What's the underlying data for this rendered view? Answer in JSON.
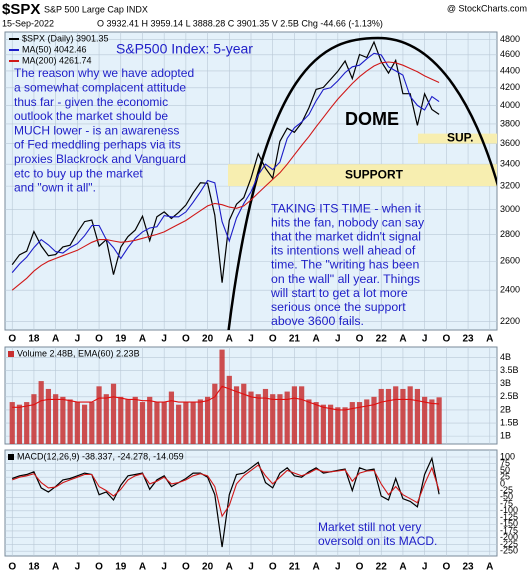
{
  "header": {
    "symbol": "$SPX",
    "name": "S&P 500 Large Cap INDX",
    "source": "@ StockCharts.com",
    "date": "15-Sep-2022",
    "quote": "O 3932.41 H 3959.14 L 3888.28 C 3901.35 V 2.5B Chg -44.66 (-1.13%)"
  },
  "chart_data": [
    {
      "type": "line",
      "log_scale": true,
      "grid": true,
      "subtitle": "S&P500 Index: 5-year",
      "note_left": [
        "The reason why we have adopted",
        "a somewhat complacent attitude",
        "thus far - given the economic",
        "outlook the market should be",
        "MUCH lower - is an awareness",
        "of Fed meddling perhaps via its",
        "proxies Blackrock and Vanguard",
        "etc to buy up the market",
        "and \"own it all\"."
      ],
      "note_right": [
        "TAKING ITS TIME - when it",
        "hits the fan, nobody can say",
        "that the market didn't signal",
        "its intentions well ahead of",
        "time. The \"writing has been",
        "on the wall\" all year. Things",
        "will start to get a lot more",
        "serious once the support",
        "above 3600 fails."
      ],
      "dome_label": "DOME",
      "bands": [
        {
          "from": 3200,
          "to": 3400,
          "label": "SUPPORT",
          "color": "#f7eeb0"
        },
        {
          "from": 3600,
          "to": 3700,
          "label": "SUP.",
          "color": "#f7eeb0"
        }
      ],
      "x": [
        0,
        1,
        2,
        3,
        4,
        5,
        6,
        7,
        8,
        9,
        10,
        11,
        12,
        13,
        14,
        15,
        16,
        17,
        18,
        19,
        20,
        21,
        22,
        23,
        24,
        25,
        26,
        27,
        28,
        29,
        30,
        31,
        32,
        33,
        34,
        35,
        36,
        37,
        38,
        39,
        40,
        41,
        42,
        43,
        44,
        45,
        46,
        47,
        48,
        49,
        50,
        51,
        52,
        53,
        54,
        55,
        56,
        57,
        58,
        59
      ],
      "xlim": [
        -1,
        67
      ],
      "xticks": [
        {
          "value": 0,
          "label": "O"
        },
        {
          "value": 3,
          "label": "18"
        },
        {
          "value": 6,
          "label": "A"
        },
        {
          "value": 9,
          "label": "J"
        },
        {
          "value": 12,
          "label": "O"
        },
        {
          "value": 15,
          "label": "19"
        },
        {
          "value": 18,
          "label": "A"
        },
        {
          "value": 21,
          "label": "J"
        },
        {
          "value": 24,
          "label": "O"
        },
        {
          "value": 27,
          "label": "20"
        },
        {
          "value": 30,
          "label": "A"
        },
        {
          "value": 33,
          "label": "J"
        },
        {
          "value": 36,
          "label": "O"
        },
        {
          "value": 39,
          "label": "21"
        },
        {
          "value": 42,
          "label": "A"
        },
        {
          "value": 45,
          "label": "J"
        },
        {
          "value": 48,
          "label": "O"
        },
        {
          "value": 51,
          "label": "22"
        },
        {
          "value": 54,
          "label": "A"
        },
        {
          "value": 57,
          "label": "J"
        },
        {
          "value": 60,
          "label": "O"
        },
        {
          "value": 63,
          "label": "23"
        },
        {
          "value": 66,
          "label": "A"
        }
      ],
      "ylim": [
        2150,
        4900
      ],
      "yticks": [
        2200,
        2400,
        2600,
        2800,
        3000,
        3200,
        3400,
        3600,
        3800,
        4000,
        4200,
        4400,
        4600,
        4800
      ],
      "series": [
        {
          "name": "$SPX (Daily) 3901.35",
          "color": "#000000",
          "values": [
            2575,
            2647,
            2673,
            2823,
            2713,
            2640,
            2648,
            2705,
            2718,
            2816,
            2901,
            2913,
            2711,
            2760,
            2506,
            2704,
            2784,
            2834,
            2945,
            2752,
            2941,
            2980,
            2926,
            2976,
            3037,
            3141,
            3230,
            3225,
            2954,
            2450,
            2912,
            3044,
            3100,
            3271,
            3500,
            3363,
            3270,
            3622,
            3756,
            3714,
            3811,
            3973,
            4181,
            4204,
            4298,
            4395,
            4523,
            4308,
            4605,
            4567,
            4766,
            4516,
            4374,
            4530,
            4132,
            4132,
            3785,
            4130,
            3955,
            3901.35
          ]
        },
        {
          "name": "MA(50) 4042.46",
          "color": "#1c1cc8",
          "values": [
            2520,
            2580,
            2630,
            2700,
            2760,
            2720,
            2670,
            2660,
            2700,
            2730,
            2790,
            2870,
            2870,
            2760,
            2700,
            2620,
            2700,
            2770,
            2820,
            2850,
            2860,
            2950,
            2940,
            2940,
            2980,
            3060,
            3150,
            3250,
            3230,
            2900,
            2750,
            2930,
            3050,
            3150,
            3300,
            3400,
            3350,
            3420,
            3650,
            3760,
            3820,
            3900,
            4050,
            4180,
            4200,
            4280,
            4380,
            4450,
            4470,
            4550,
            4620,
            4600,
            4450,
            4400,
            4350,
            4100,
            4000,
            3950,
            4100,
            4042.46
          ]
        },
        {
          "name": "MA(200) 4261.74",
          "color": "#d01818",
          "values": [
            2400,
            2440,
            2480,
            2530,
            2570,
            2600,
            2620,
            2640,
            2660,
            2680,
            2710,
            2740,
            2760,
            2760,
            2750,
            2740,
            2745,
            2755,
            2770,
            2785,
            2800,
            2820,
            2850,
            2880,
            2910,
            2950,
            2990,
            3030,
            3050,
            3040,
            3020,
            3010,
            3030,
            3080,
            3140,
            3200,
            3260,
            3320,
            3400,
            3490,
            3580,
            3670,
            3770,
            3870,
            3970,
            4070,
            4160,
            4250,
            4330,
            4400,
            4460,
            4500,
            4510,
            4500,
            4470,
            4430,
            4390,
            4340,
            4300,
            4261.74
          ]
        }
      ]
    },
    {
      "type": "bar",
      "grid": true,
      "title": "Volume 2.48B, EMA(60) 2.23B",
      "x": [
        0,
        1,
        2,
        3,
        4,
        5,
        6,
        7,
        8,
        9,
        10,
        11,
        12,
        13,
        14,
        15,
        16,
        17,
        18,
        19,
        20,
        21,
        22,
        23,
        24,
        25,
        26,
        27,
        28,
        29,
        30,
        31,
        32,
        33,
        34,
        35,
        36,
        37,
        38,
        39,
        40,
        41,
        42,
        43,
        44,
        45,
        46,
        47,
        48,
        49,
        50,
        51,
        52,
        53,
        54,
        55,
        56,
        57,
        58,
        59
      ],
      "xlim": [
        -1,
        67
      ],
      "ylim": [
        0.7,
        4.4
      ],
      "yticks": [
        {
          "value": 1,
          "label": "1B"
        },
        {
          "value": 1.5,
          "label": "1.5B"
        },
        {
          "value": 2,
          "label": "2B"
        },
        {
          "value": 2.5,
          "label": "2.5B"
        },
        {
          "value": 3,
          "label": "3B"
        },
        {
          "value": 3.5,
          "label": "3.5B"
        },
        {
          "value": 4,
          "label": "4B"
        }
      ],
      "series": [
        {
          "type": "bar",
          "color": "#c83030",
          "values": [
            2.3,
            2.2,
            2.3,
            2.6,
            3.1,
            2.8,
            2.6,
            2.5,
            2.4,
            2.3,
            2.2,
            2.3,
            2.9,
            2.6,
            3.0,
            2.5,
            2.4,
            2.5,
            2.3,
            2.5,
            2.3,
            2.3,
            2.7,
            2.2,
            2.3,
            2.3,
            2.4,
            2.5,
            3.0,
            4.3,
            3.3,
            2.9,
            3.0,
            2.7,
            2.6,
            2.8,
            2.6,
            2.6,
            2.7,
            2.9,
            2.9,
            2.4,
            2.3,
            2.2,
            2.2,
            2.1,
            2.1,
            2.3,
            2.3,
            2.4,
            2.5,
            2.8,
            2.8,
            2.9,
            2.8,
            2.9,
            2.8,
            2.5,
            2.4,
            2.48
          ]
        },
        {
          "type": "line",
          "color": "#e01010",
          "values": [
            2.1,
            2.1,
            2.15,
            2.2,
            2.35,
            2.4,
            2.4,
            2.4,
            2.35,
            2.3,
            2.3,
            2.3,
            2.45,
            2.45,
            2.5,
            2.45,
            2.4,
            2.4,
            2.35,
            2.35,
            2.3,
            2.3,
            2.35,
            2.3,
            2.3,
            2.3,
            2.3,
            2.35,
            2.5,
            2.9,
            2.8,
            2.7,
            2.6,
            2.5,
            2.45,
            2.45,
            2.4,
            2.4,
            2.4,
            2.45,
            2.4,
            2.3,
            2.2,
            2.1,
            2.05,
            2.0,
            2.0,
            2.05,
            2.1,
            2.15,
            2.2,
            2.3,
            2.35,
            2.4,
            2.4,
            2.4,
            2.35,
            2.3,
            2.25,
            2.23
          ]
        }
      ]
    },
    {
      "type": "line",
      "grid": true,
      "title": "MACD(12,26,9) -38.337, -24.278, -14.059",
      "note": [
        "Market still not very",
        "oversold on its MACD."
      ],
      "x": [
        0,
        1,
        2,
        3,
        4,
        5,
        6,
        7,
        8,
        9,
        10,
        11,
        12,
        13,
        14,
        15,
        16,
        17,
        18,
        19,
        20,
        21,
        22,
        23,
        24,
        25,
        26,
        27,
        28,
        29,
        30,
        31,
        32,
        33,
        34,
        35,
        36,
        37,
        38,
        39,
        40,
        41,
        42,
        43,
        44,
        45,
        46,
        47,
        48,
        49,
        50,
        51,
        52,
        53,
        54,
        55,
        56,
        57,
        58,
        59
      ],
      "xlim": [
        -1,
        67
      ],
      "xticks": [
        {
          "value": 0,
          "label": "O"
        },
        {
          "value": 3,
          "label": "18"
        },
        {
          "value": 6,
          "label": "A"
        },
        {
          "value": 9,
          "label": "J"
        },
        {
          "value": 12,
          "label": "O"
        },
        {
          "value": 15,
          "label": "19"
        },
        {
          "value": 18,
          "label": "A"
        },
        {
          "value": 21,
          "label": "J"
        },
        {
          "value": 24,
          "label": "O"
        },
        {
          "value": 27,
          "label": "20"
        },
        {
          "value": 30,
          "label": "A"
        },
        {
          "value": 33,
          "label": "J"
        },
        {
          "value": 36,
          "label": "O"
        },
        {
          "value": 39,
          "label": "21"
        },
        {
          "value": 42,
          "label": "A"
        },
        {
          "value": 45,
          "label": "J"
        },
        {
          "value": 48,
          "label": "O"
        },
        {
          "value": 51,
          "label": "22"
        },
        {
          "value": 54,
          "label": "A"
        },
        {
          "value": 57,
          "label": "J"
        },
        {
          "value": 60,
          "label": "O"
        },
        {
          "value": 63,
          "label": "23"
        },
        {
          "value": 66,
          "label": "A"
        }
      ],
      "ylim": [
        -268,
        126
      ],
      "yticks": [
        -250,
        -225,
        -200,
        -175,
        -150,
        -125,
        -100,
        -75,
        -50,
        -25,
        0,
        25,
        50,
        75,
        100
      ],
      "series": [
        {
          "type": "line",
          "color": "#000000",
          "values": [
            20,
            30,
            35,
            45,
            -15,
            -30,
            -10,
            15,
            20,
            30,
            40,
            35,
            -40,
            -30,
            -60,
            -5,
            30,
            35,
            40,
            -20,
            15,
            30,
            -10,
            5,
            20,
            40,
            40,
            25,
            -40,
            -235,
            -40,
            35,
            40,
            60,
            80,
            5,
            -15,
            40,
            60,
            30,
            25,
            45,
            60,
            40,
            45,
            50,
            55,
            -25,
            60,
            50,
            55,
            -45,
            -60,
            20,
            -55,
            -65,
            -85,
            35,
            95,
            -38.337
          ]
        },
        {
          "type": "line",
          "color": "#d01818",
          "values": [
            15,
            25,
            30,
            38,
            5,
            -15,
            -12,
            5,
            15,
            25,
            35,
            35,
            -10,
            -25,
            -45,
            -20,
            15,
            30,
            38,
            0,
            10,
            25,
            0,
            5,
            15,
            30,
            38,
            30,
            -10,
            -120,
            -80,
            0,
            30,
            50,
            70,
            30,
            0,
            25,
            50,
            40,
            30,
            40,
            55,
            45,
            45,
            48,
            52,
            10,
            40,
            48,
            50,
            0,
            -40,
            -10,
            -40,
            -55,
            -70,
            0,
            60,
            -24.278
          ]
        }
      ]
    }
  ]
}
